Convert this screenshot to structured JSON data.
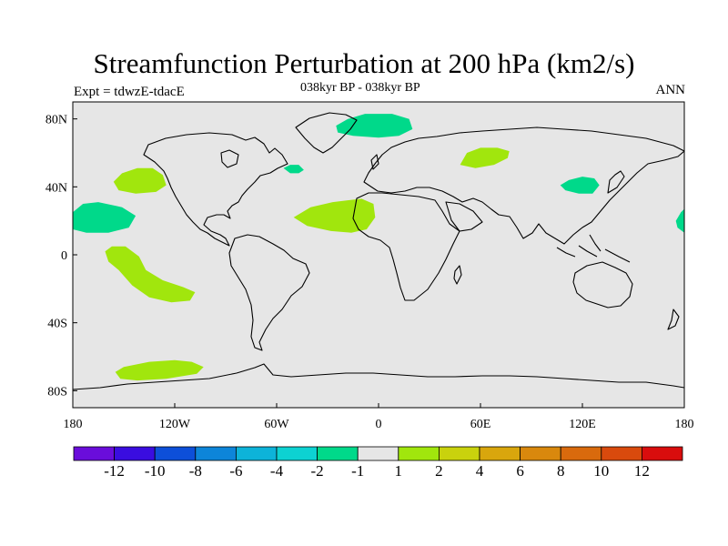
{
  "title": "Streamfunction Perturbation at 200 hPa (km2/s)",
  "subtitle": "038kyr BP - 038kyr BP",
  "left_string": "Expt = tdwzE-tdacE",
  "right_string": "ANN",
  "map": {
    "projection": "cylindrical equidistant",
    "lon_range": [
      -180,
      180
    ],
    "lat_range": [
      -90,
      90
    ],
    "background_color": "#e6e6e6",
    "x_ticks": [
      {
        "lon": -180,
        "label": "180"
      },
      {
        "lon": -120,
        "label": "120W"
      },
      {
        "lon": -60,
        "label": "60W"
      },
      {
        "lon": 0,
        "label": "0"
      },
      {
        "lon": 60,
        "label": "60E"
      },
      {
        "lon": 120,
        "label": "120E"
      },
      {
        "lon": 180,
        "label": "180"
      }
    ],
    "y_ticks": [
      {
        "lat": 80,
        "label": "80N"
      },
      {
        "lat": 40,
        "label": "40N"
      },
      {
        "lat": 0,
        "label": "0"
      },
      {
        "lat": -40,
        "label": "40S"
      },
      {
        "lat": -80,
        "label": "80S"
      }
    ],
    "anomaly_regions": [
      {
        "name": "north-atlantic-greenland",
        "level": "-2 to -1",
        "color": "#00d98a",
        "polygon": [
          [
            -25,
            76
          ],
          [
            -18,
            80
          ],
          [
            -8,
            83
          ],
          [
            8,
            83
          ],
          [
            18,
            80
          ],
          [
            20,
            74
          ],
          [
            12,
            70
          ],
          [
            0,
            69
          ],
          [
            -15,
            70
          ],
          [
            -24,
            72
          ]
        ]
      },
      {
        "name": "north-pacific",
        "level": "1 to 2",
        "color": "#a1e60d",
        "polygon": [
          [
            -156,
            43
          ],
          [
            -151,
            48
          ],
          [
            -142,
            51
          ],
          [
            -133,
            51
          ],
          [
            -127,
            47
          ],
          [
            -125,
            41
          ],
          [
            -131,
            37
          ],
          [
            -143,
            36
          ],
          [
            -153,
            38
          ]
        ]
      },
      {
        "name": "central-pacific-dateline",
        "level": "-2 to -1",
        "color": "#00d98a",
        "polygon": [
          [
            -180,
            25
          ],
          [
            -174,
            30
          ],
          [
            -165,
            31
          ],
          [
            -151,
            28
          ],
          [
            -143,
            23
          ],
          [
            -147,
            16
          ],
          [
            -159,
            13
          ],
          [
            -172,
            13
          ],
          [
            -180,
            15
          ]
        ]
      },
      {
        "name": "east-pacific-south",
        "level": "1 to 2",
        "color": "#a1e60d",
        "polygon": [
          [
            -161,
            2
          ],
          [
            -157,
            5
          ],
          [
            -149,
            5
          ],
          [
            -141,
            -1
          ],
          [
            -137,
            -9
          ],
          [
            -127,
            -15
          ],
          [
            -115,
            -19
          ],
          [
            -108,
            -22
          ],
          [
            -111,
            -27
          ],
          [
            -122,
            -28
          ],
          [
            -135,
            -25
          ],
          [
            -145,
            -18
          ],
          [
            -153,
            -9
          ],
          [
            -159,
            -4
          ]
        ]
      },
      {
        "name": "tropical-atlantic",
        "level": "1 to 2",
        "color": "#a1e60d",
        "polygon": [
          [
            -50,
            22
          ],
          [
            -40,
            28
          ],
          [
            -27,
            31
          ],
          [
            -10,
            33
          ],
          [
            -3,
            30
          ],
          [
            -2,
            22
          ],
          [
            -7,
            15
          ],
          [
            -16,
            13
          ],
          [
            -28,
            14
          ],
          [
            -42,
            17
          ]
        ]
      },
      {
        "name": "labrador-sea",
        "level": "-2 to -1",
        "color": "#00d98a",
        "polygon": [
          [
            -56,
            51
          ],
          [
            -52,
            53
          ],
          [
            -47,
            53
          ],
          [
            -44,
            50
          ],
          [
            -47,
            48
          ],
          [
            -52,
            48
          ]
        ]
      },
      {
        "name": "central-asia",
        "level": "1 to 2",
        "color": "#a1e60d",
        "polygon": [
          [
            48,
            53
          ],
          [
            52,
            60
          ],
          [
            60,
            63
          ],
          [
            70,
            63
          ],
          [
            77,
            61
          ],
          [
            76,
            57
          ],
          [
            68,
            53
          ],
          [
            57,
            51
          ]
        ]
      },
      {
        "name": "east-asia",
        "level": "-2 to -1",
        "color": "#00d98a",
        "polygon": [
          [
            107,
            41
          ],
          [
            112,
            44
          ],
          [
            120,
            46
          ],
          [
            127,
            45
          ],
          [
            130,
            41
          ],
          [
            126,
            36
          ],
          [
            118,
            36
          ],
          [
            110,
            38
          ]
        ]
      },
      {
        "name": "west-pacific-edge",
        "level": "-2 to -1",
        "color": "#00d98a",
        "polygon": [
          [
            180,
            13
          ],
          [
            176,
            16
          ],
          [
            175,
            20
          ],
          [
            178,
            25
          ],
          [
            180,
            27
          ]
        ]
      },
      {
        "name": "southern-ocean",
        "level": "1 to 2",
        "color": "#a1e60d",
        "polygon": [
          [
            -155,
            -69
          ],
          [
            -150,
            -66
          ],
          [
            -135,
            -63
          ],
          [
            -120,
            -62
          ],
          [
            -110,
            -63
          ],
          [
            -103,
            -66
          ],
          [
            -107,
            -70
          ],
          [
            -125,
            -73
          ],
          [
            -142,
            -74
          ],
          [
            -152,
            -73
          ]
        ]
      }
    ]
  },
  "colorbar": {
    "colors": [
      "#6a0ddb",
      "#3a0de0",
      "#0d4fd9",
      "#0d85d9",
      "#0db3d9",
      "#0dd2d2",
      "#00d98a",
      "#e6e6e6",
      "#a1e60d",
      "#c9d20d",
      "#d9a60d",
      "#d9880d",
      "#d96a0d",
      "#d94a0d",
      "#d90d0d"
    ],
    "labels": [
      "-12",
      "-10",
      "-8",
      "-6",
      "-4",
      "-2",
      "-1",
      "1",
      "2",
      "4",
      "6",
      "8",
      "10",
      "12"
    ]
  }
}
